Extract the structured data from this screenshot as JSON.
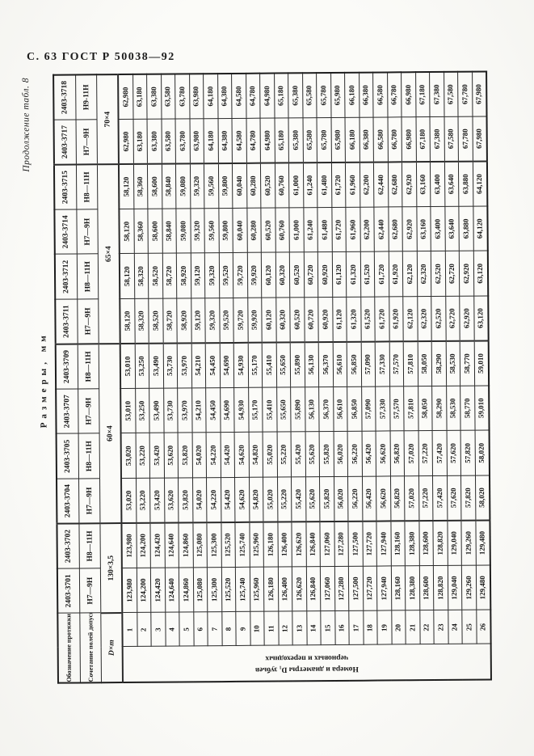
{
  "page": {
    "running_header": "С. 63 ГОСТ Р 50038—92",
    "continuation_note": "Продолжение табл. 8",
    "table_title": "Размеры, мм"
  },
  "table": {
    "stub_headers": {
      "designation": "Обозначение протяжки",
      "tolerance": "Сочетание полей допусков D и d",
      "dimension": "D×m"
    },
    "rows_group_label": {
      "line1": "Номера и диаметры D₁ зубьев",
      "line2": "черновых и переходных"
    },
    "row_numbers": [
      1,
      2,
      3,
      4,
      5,
      6,
      7,
      8,
      9,
      10,
      11,
      12,
      13,
      14,
      15,
      16,
      17,
      18,
      19,
      20,
      21,
      22,
      23,
      24,
      25,
      26
    ],
    "groups": [
      {
        "label": "130×3,5",
        "span": 2
      },
      {
        "label": "60×4",
        "span": 4
      },
      {
        "label": "65×4",
        "span": 4
      },
      {
        "label": "70×4",
        "span": 2
      }
    ],
    "columns": [
      {
        "designation": "2403-3701",
        "tolerance": "Н7—9Н",
        "series": "s130"
      },
      {
        "designation": "2403-3702",
        "tolerance": "Н8—11Н",
        "series": "s130"
      },
      {
        "designation": "2403-3704",
        "tolerance": "Н7—9Н",
        "series": "s60a"
      },
      {
        "designation": "2403-3705",
        "tolerance": "Н8—11Н",
        "series": "s60a"
      },
      {
        "designation": "2403-3707",
        "tolerance": "Н7—9Н",
        "series": "s60b"
      },
      {
        "designation": "2403-3709",
        "tolerance": "Н8—11Н",
        "series": "s60b"
      },
      {
        "designation": "2403-3711",
        "tolerance": "Н7—9Н",
        "series": "s65a"
      },
      {
        "designation": "2403-3712",
        "tolerance": "Н8—11Н",
        "series": "s65a"
      },
      {
        "designation": "2403-3714",
        "tolerance": "Н7—9Н",
        "series": "s65b"
      },
      {
        "designation": "2403-3715",
        "tolerance": "Н8—11Н",
        "series": "s65b"
      },
      {
        "designation": "2403-3717",
        "tolerance": "Н7—9Н",
        "series": "s70"
      },
      {
        "designation": "2403-3718",
        "tolerance": "Н9-11Н",
        "series": "s70"
      }
    ],
    "series": {
      "s130": [
        "123,980",
        "124,200",
        "124,420",
        "124,640",
        "124,860",
        "125,080",
        "125,300",
        "125,520",
        "125,740",
        "125,960",
        "126,180",
        "126,400",
        "126,620",
        "126,840",
        "127,060",
        "127,280",
        "127,500",
        "127,720",
        "127,940",
        "128,160",
        "128,380",
        "128,600",
        "128,820",
        "129,040",
        "129,260",
        "129,480"
      ],
      "s60a": [
        "53,020",
        "53,220",
        "53,420",
        "53,620",
        "53,820",
        "54,020",
        "54,220",
        "54,420",
        "54,620",
        "54,820",
        "55,020",
        "55,220",
        "55,420",
        "55,620",
        "55,820",
        "56,020",
        "56,220",
        "56,420",
        "56,620",
        "56,820",
        "57,020",
        "57,220",
        "57,420",
        "57,620",
        "57,820",
        "58,020"
      ],
      "s60b": [
        "53,010",
        "53,250",
        "53,490",
        "53,730",
        "53,970",
        "54,210",
        "54,450",
        "54,690",
        "54,930",
        "55,170",
        "55,410",
        "55,650",
        "55,890",
        "56,130",
        "56,370",
        "56,610",
        "56,850",
        "57,090",
        "57,330",
        "57,570",
        "57,810",
        "58,050",
        "58,290",
        "58,530",
        "58,770",
        "59,010"
      ],
      "s65a": [
        "58,120",
        "58,320",
        "58,520",
        "58,720",
        "58,920",
        "59,120",
        "59,320",
        "59,520",
        "59,720",
        "59,920",
        "60,120",
        "60,320",
        "60,520",
        "60,720",
        "60,920",
        "61,120",
        "61,320",
        "61,520",
        "61,720",
        "61,920",
        "62,120",
        "62,320",
        "62,520",
        "62,720",
        "62,920",
        "63,120"
      ],
      "s65b": [
        "58,120",
        "58,360",
        "58,600",
        "58,840",
        "59,080",
        "59,320",
        "59,560",
        "59,800",
        "60,040",
        "60,280",
        "60,520",
        "60,760",
        "61,000",
        "61,240",
        "61,480",
        "61,720",
        "61,960",
        "62,200",
        "62,440",
        "62,680",
        "62,920",
        "63,160",
        "63,400",
        "63,640",
        "63,880",
        "64,120"
      ],
      "s70": [
        "62,980",
        "63,180",
        "63,380",
        "63,580",
        "63,780",
        "63,980",
        "64,180",
        "64,380",
        "64,580",
        "64,780",
        "64,980",
        "65,180",
        "65,380",
        "65,580",
        "65,780",
        "65,980",
        "66,180",
        "66,380",
        "66,580",
        "66,780",
        "66,980",
        "67,180",
        "67,380",
        "67,580",
        "67,780",
        "67,980"
      ]
    }
  }
}
